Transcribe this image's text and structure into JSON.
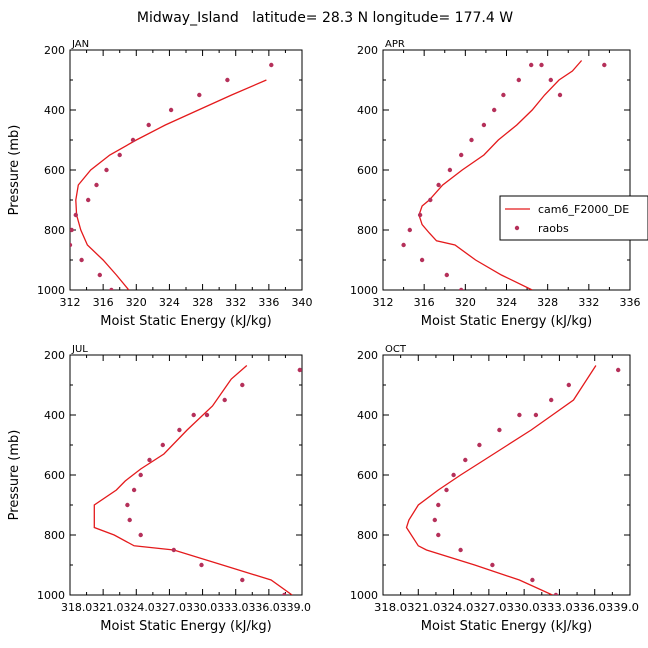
{
  "title": "Midway_Island   latitude= 28.3 N longitude= 177.4 W",
  "colors": {
    "model": "#e41a1c",
    "obs": "#b5305a",
    "axis": "#000000"
  },
  "legend": {
    "placement": "inside-right of APR panel",
    "entries": [
      "cam6_F2000_DE",
      "raobs"
    ]
  },
  "chart_data": [
    {
      "type": "line",
      "panel": "JAN",
      "xlabel": "Moist Static Energy (kJ/kg)",
      "ylabel": "Pressure (mb)",
      "xlim": [
        312,
        340
      ],
      "ylim": [
        200,
        1000
      ],
      "y_inverted": true,
      "xticks": [
        "312",
        "316",
        "320",
        "324",
        "328",
        "332",
        "336",
        "340"
      ],
      "yticks": [
        "200",
        "400",
        "600",
        "800",
        "1000"
      ],
      "series": [
        {
          "name": "cam6_F2000_DE",
          "kind": "line",
          "x": [
            319.1,
            317.6,
            316.0,
            314.1,
            313.3,
            312.8,
            312.7,
            313.0,
            314.5,
            316.8,
            320.0,
            323.5,
            327.5,
            331.5,
            335.7
          ],
          "y": [
            1000,
            950,
            900,
            850,
            800,
            750,
            700,
            650,
            600,
            550,
            500,
            450,
            400,
            350,
            300
          ]
        },
        {
          "name": "raobs",
          "kind": "points",
          "x": [
            317.0,
            315.6,
            313.4,
            312.0,
            312.2,
            312.7,
            314.2,
            315.2,
            316.4,
            318.0,
            319.6,
            321.5,
            324.2,
            327.6,
            331.0,
            336.3
          ],
          "y": [
            1000,
            950,
            900,
            850,
            800,
            750,
            700,
            650,
            600,
            550,
            500,
            450,
            400,
            350,
            300,
            250
          ]
        }
      ]
    },
    {
      "type": "line",
      "panel": "APR",
      "xlabel": "Moist Static Energy (kJ/kg)",
      "ylabel": "",
      "xlim": [
        312,
        336
      ],
      "ylim": [
        200,
        1000
      ],
      "y_inverted": true,
      "xticks": [
        "312",
        "316",
        "320",
        "324",
        "328",
        "332",
        "336"
      ],
      "yticks": [
        "200",
        "400",
        "600",
        "800",
        "1000"
      ],
      "series": [
        {
          "name": "cam6_F2000_DE",
          "kind": "line",
          "x": [
            326.5,
            323.5,
            321.0,
            319.0,
            317.2,
            316.5,
            315.8,
            315.5,
            315.8,
            316.5,
            317.8,
            319.7,
            321.8,
            323.2,
            325.0,
            326.5,
            327.7,
            329.1,
            330.4,
            331.3
          ],
          "y": [
            1000,
            950,
            900,
            850,
            836,
            810,
            782,
            750,
            720,
            700,
            650,
            600,
            550,
            500,
            450,
            400,
            350,
            300,
            270,
            235
          ]
        },
        {
          "name": "raobs",
          "kind": "points",
          "x": [
            319.6,
            318.2,
            315.8,
            314.0,
            314.6,
            315.6,
            316.6,
            317.4,
            318.5,
            319.6,
            320.6,
            321.8,
            322.8,
            323.7,
            325.2,
            326.4,
            327.4,
            328.3,
            329.2,
            333.5
          ],
          "y": [
            1000,
            950,
            900,
            850,
            800,
            750,
            700,
            650,
            600,
            550,
            500,
            450,
            400,
            350,
            300,
            250,
            250,
            300,
            350,
            250
          ]
        }
      ]
    },
    {
      "type": "line",
      "panel": "JUL",
      "xlabel": "Moist Static Energy (kJ/kg)",
      "ylabel": "Pressure (mb)",
      "xlim": [
        318.0,
        339.0
      ],
      "ylim": [
        200,
        1000
      ],
      "y_inverted": true,
      "xticks": [
        "318.0",
        "321.0",
        "324.0",
        "327.0",
        "330.0",
        "333.0",
        "336.0",
        "339.0"
      ],
      "xtick_text": "318.0321.0324.0327.0330.0333.0336.0339.0",
      "yticks": [
        "200",
        "400",
        "600",
        "800",
        "1000"
      ],
      "series": [
        {
          "name": "cam6_F2000_DE",
          "kind": "line",
          "x": [
            338.1,
            336.2,
            331.8,
            327.4,
            323.8,
            322.0,
            320.2,
            320.2,
            322.2,
            323.0,
            324.4,
            326.5,
            328.6,
            330.9,
            332.6,
            334.0
          ],
          "y": [
            1000,
            950,
            900,
            850,
            836,
            800,
            775,
            700,
            650,
            620,
            580,
            530,
            450,
            370,
            280,
            235
          ]
        },
        {
          "name": "raobs",
          "kind": "points",
          "x": [
            337.4,
            333.6,
            329.9,
            327.4,
            324.4,
            323.4,
            323.2,
            323.8,
            324.4,
            325.2,
            326.4,
            327.9,
            329.2,
            330.4,
            332.0,
            333.6,
            338.8
          ],
          "y": [
            1000,
            950,
            900,
            850,
            800,
            750,
            700,
            650,
            600,
            550,
            500,
            450,
            400,
            400,
            350,
            300,
            250
          ]
        }
      ]
    },
    {
      "type": "line",
      "panel": "OCT",
      "xlabel": "Moist Static Energy (kJ/kg)",
      "ylabel": "",
      "xlim": [
        318.0,
        339.0
      ],
      "ylim": [
        200,
        1000
      ],
      "y_inverted": true,
      "xticks": [
        "318.0",
        "321.0",
        "324.0",
        "327.0",
        "330.0",
        "333.0",
        "336.0",
        "339.0"
      ],
      "xtick_text": "318.0321.0324.0327.0330.0333.0336.0339.0",
      "yticks": [
        "200",
        "400",
        "600",
        "800",
        "1000"
      ],
      "series": [
        {
          "name": "cam6_F2000_DE",
          "kind": "line",
          "x": [
            332.4,
            329.6,
            325.8,
            321.7,
            321.0,
            320.0,
            320.2,
            321.0,
            322.7,
            324.6,
            326.6,
            328.6,
            330.6,
            332.4,
            334.2,
            336.1
          ],
          "y": [
            1000,
            950,
            900,
            850,
            836,
            775,
            750,
            700,
            650,
            600,
            550,
            500,
            450,
            400,
            350,
            235
          ]
        },
        {
          "name": "raobs",
          "kind": "points",
          "x": [
            332.7,
            330.7,
            327.3,
            324.6,
            322.7,
            322.4,
            322.7,
            323.4,
            324.0,
            325.0,
            326.2,
            327.9,
            329.6,
            331.0,
            332.3,
            333.8,
            338.0
          ],
          "y": [
            1000,
            950,
            900,
            850,
            800,
            750,
            700,
            650,
            600,
            550,
            500,
            450,
            400,
            400,
            350,
            300,
            250
          ]
        }
      ]
    }
  ]
}
